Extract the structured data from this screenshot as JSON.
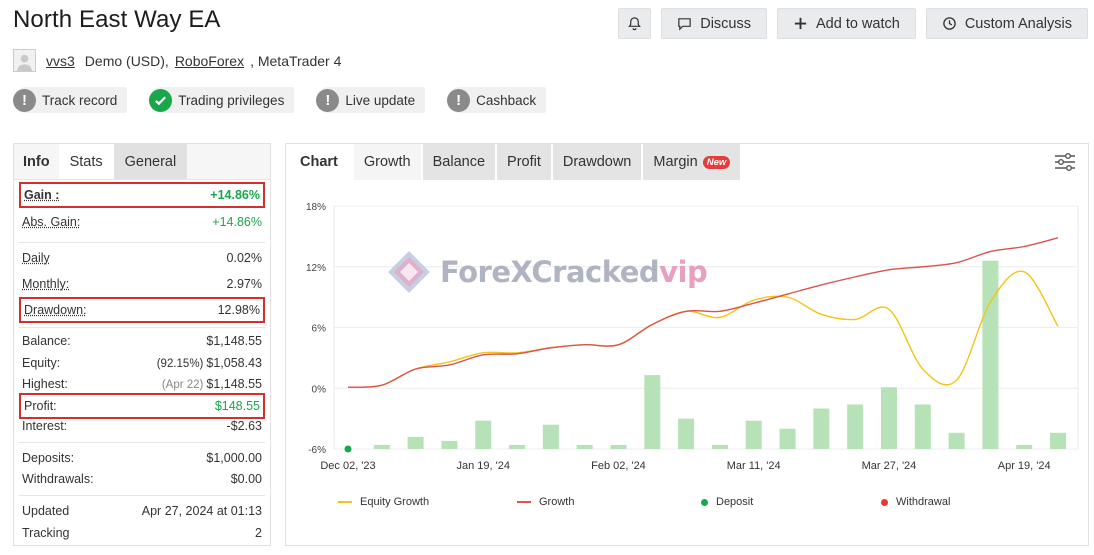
{
  "header": {
    "title": "North East Way EA",
    "buttons": {
      "discuss": "Discuss",
      "watch": "Add to watch",
      "analysis": "Custom Analysis"
    }
  },
  "account": {
    "user": "vvs3",
    "type": "Demo (USD),",
    "broker": "RoboForex",
    "platform": ", MetaTrader 4"
  },
  "badges": [
    {
      "label": "Track record",
      "status": "grey"
    },
    {
      "label": "Trading privileges",
      "status": "green"
    },
    {
      "label": "Live update",
      "status": "grey"
    },
    {
      "label": "Cashback",
      "status": "grey"
    }
  ],
  "left_tabs": {
    "info": "Info",
    "stats": "Stats",
    "general": "General"
  },
  "stats": {
    "gain": {
      "label": "Gain :",
      "value": "+14.86%"
    },
    "abs_gain": {
      "label": "Abs. Gain:",
      "value": "+14.86%"
    },
    "daily": {
      "label": "Daily",
      "value": "0.02%"
    },
    "monthly": {
      "label": "Monthly:",
      "value": "2.97%"
    },
    "drawdown": {
      "label": "Drawdown:",
      "value": "12.98%"
    },
    "balance": {
      "label": "Balance:",
      "value": "$1,148.55"
    },
    "equity": {
      "label": "Equity:",
      "sub": "(92.15%)",
      "value": "$1,058.43"
    },
    "highest": {
      "label": "Highest:",
      "sub": "(Apr 22)",
      "value": "$1,148.55"
    },
    "profit": {
      "label": "Profit:",
      "value": "$148.55"
    },
    "interest": {
      "label": "Interest:",
      "value": "-$2.63"
    },
    "deposits": {
      "label": "Deposits:",
      "value": "$1,000.00"
    },
    "withdrawals": {
      "label": "Withdrawals:",
      "value": "$0.00"
    },
    "updated": {
      "label": "Updated",
      "value": "Apr 27, 2024 at 01:13"
    },
    "tracking": {
      "label": "Tracking",
      "value": "2"
    }
  },
  "chart_tabs": {
    "chart": "Chart",
    "growth": "Growth",
    "balance": "Balance",
    "profit": "Profit",
    "drawdown": "Drawdown",
    "margin": "Margin",
    "new": "New"
  },
  "watermark": {
    "main": "ForeXCracked",
    "vip": "vip"
  },
  "colors": {
    "equity_growth": "#f2c514",
    "growth": "#d9534f",
    "deposit": "#1aa64a",
    "withdrawal": "#e53935",
    "bars": "#b7e2b7",
    "highlight": "#d32f2f"
  },
  "chart_data": {
    "type": "line",
    "yticks": [
      "18%",
      "12%",
      "6%",
      "0%",
      "-6%"
    ],
    "ytick_values": [
      18,
      12,
      6,
      0,
      -6
    ],
    "ylim": [
      -6,
      18
    ],
    "xticks": [
      "Dec 02, '23",
      "Jan 19, '24",
      "Feb 02, '24",
      "Mar 11, '24",
      "Mar 27, '24",
      "Apr 19, '24"
    ],
    "x_index_range": [
      0,
      21
    ],
    "xtick_index": [
      0,
      4,
      8,
      12,
      16,
      20
    ],
    "legend": [
      "Equity Growth",
      "Growth",
      "Deposit",
      "Withdrawal"
    ],
    "series": [
      {
        "name": "Growth",
        "x": [
          0,
          1,
          2,
          3,
          4,
          5,
          6,
          7,
          8,
          9,
          10,
          11,
          12,
          13,
          14,
          15,
          16,
          17,
          18,
          19,
          20,
          21
        ],
        "values": [
          0.1,
          0.3,
          1.9,
          2.3,
          3.3,
          3.4,
          4.0,
          4.3,
          4.3,
          6.3,
          7.6,
          7.6,
          8.4,
          9.3,
          10.2,
          11.0,
          11.7,
          12.0,
          12.4,
          13.5,
          14.0,
          14.86
        ]
      },
      {
        "name": "Equity Growth",
        "x": [
          0,
          1,
          2,
          3,
          4,
          5,
          6,
          7,
          8,
          9,
          10,
          11,
          12,
          13,
          14,
          15,
          16,
          17,
          18,
          19,
          20,
          21
        ],
        "values": [
          0.1,
          0.3,
          1.9,
          2.6,
          3.5,
          3.5,
          4.0,
          4.3,
          4.3,
          6.3,
          7.6,
          7.0,
          8.7,
          9.0,
          7.3,
          6.8,
          7.8,
          1.9,
          0.8,
          8.5,
          11.5,
          6.1
        ]
      },
      {
        "name": "Daily bars",
        "x": [
          1,
          2,
          3,
          4,
          5,
          6,
          7,
          8,
          9,
          10,
          11,
          12,
          13,
          14,
          15,
          16,
          17,
          18,
          19,
          20,
          21
        ],
        "values": [
          -5.6,
          -4.8,
          -5.2,
          -3.2,
          -5.6,
          -3.6,
          -5.6,
          -5.6,
          1.3,
          -3.0,
          -5.6,
          -3.2,
          -4.0,
          -2.0,
          -1.6,
          0.1,
          -1.6,
          -4.4,
          12.6,
          -5.6,
          -4.4
        ]
      }
    ],
    "deposit_points": [
      {
        "x": 0,
        "y": -6
      }
    ]
  }
}
